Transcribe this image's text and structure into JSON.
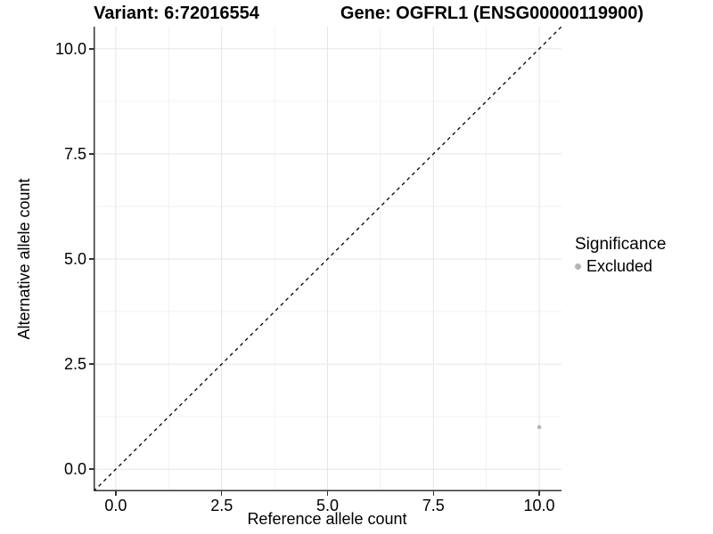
{
  "chart_data": {
    "type": "scatter",
    "titles": {
      "left": "Variant: 6:72016554",
      "right": "Gene: OGFRL1 (ENSG00000119900)"
    },
    "xlabel": "Reference allele count",
    "ylabel": "Alternative allele count",
    "xlim": [
      -0.525,
      10.525
    ],
    "ylim": [
      -0.525,
      10.525
    ],
    "x_ticks": [
      0,
      2.5,
      5,
      7.5,
      10
    ],
    "x_tick_labels": [
      "0.0",
      "2.5",
      "5.0",
      "7.5",
      "10.0"
    ],
    "y_ticks": [
      0,
      2.5,
      5,
      7.5,
      10
    ],
    "y_tick_labels": [
      "0.0",
      "2.5",
      "5.0",
      "7.5",
      "10.0"
    ],
    "minor_ticks": [
      1.25,
      3.75,
      6.25,
      8.75
    ],
    "grid": "major+minor",
    "reference_line": {
      "kind": "identity",
      "slope": 1,
      "intercept": 0,
      "linetype": "dashed",
      "color": "#000000"
    },
    "series": [
      {
        "name": "Excluded",
        "color": "#b5b5b5",
        "point_radius": 2.3,
        "points": [
          [
            10,
            1
          ]
        ]
      }
    ],
    "legend": {
      "title": "Significance",
      "position": "right",
      "items": [
        {
          "label": "Excluded",
          "color": "#b5b5b5",
          "marker": "circle"
        }
      ]
    },
    "styles": {
      "background": "#ffffff",
      "axis_color": "#333333",
      "grid_major_color": "#e5e5e5",
      "grid_minor_color": "#f2f2f2",
      "text_color": "#000000"
    }
  }
}
